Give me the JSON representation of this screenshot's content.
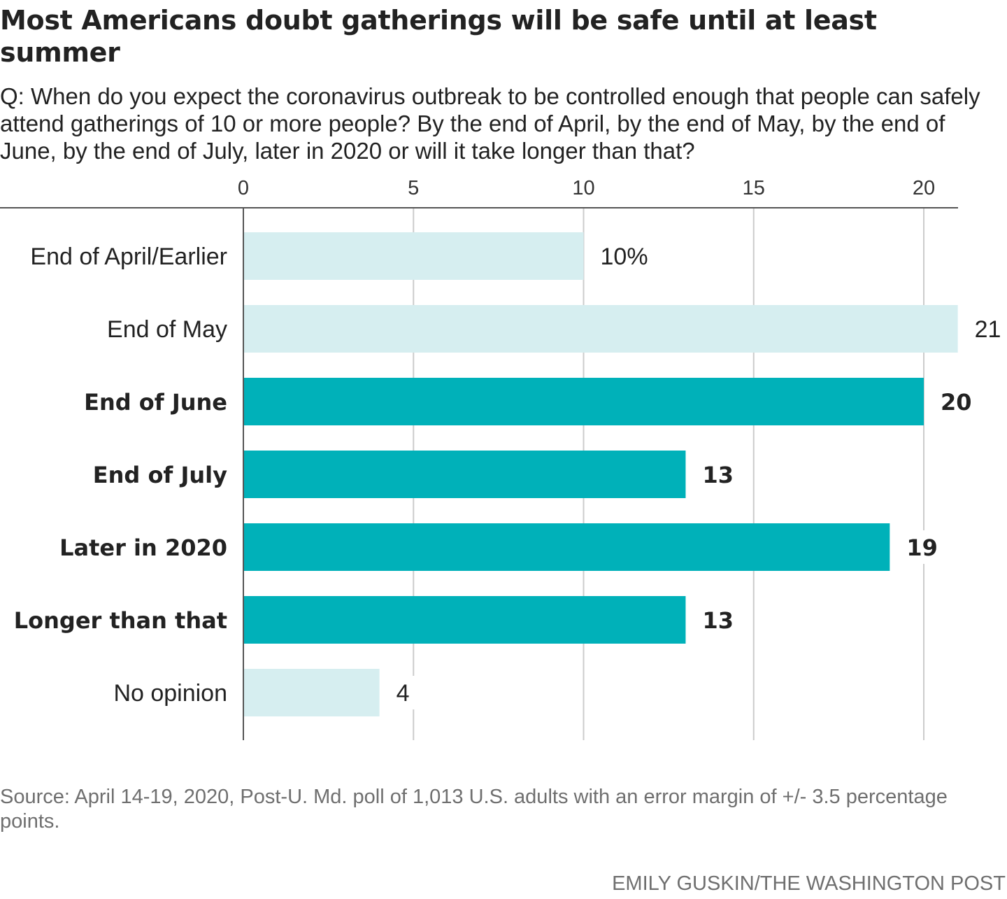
{
  "title": "Most Americans doubt gatherings will be safe until at least summer",
  "subtitle": "Q: When do you expect the coronavirus outbreak to be controlled enough that people can safely attend gatherings of 10 or more people? By the end of April, by the end of May, by the end of June, by the end of July, later in 2020 or will it take longer than that?",
  "source": "Source: April 14-19, 2020, Post-U. Md. poll of 1,013 U.S. adults with an error margin of +/- 3.5 percentage points.",
  "credit": "EMILY GUSKIN/THE WASHINGTON POST",
  "colors": {
    "highlight": "#00b1b9",
    "muted": "#d6eef0",
    "grid": "#cccccc",
    "axis": "#555555"
  },
  "chart_data": {
    "type": "bar",
    "orientation": "horizontal",
    "xlim": [
      0,
      21
    ],
    "xticks": [
      0,
      5,
      10,
      15,
      20
    ],
    "grid": true,
    "categories": [
      "End of April/Earlier",
      "End of May",
      "End of June",
      "End of July",
      "Later in 2020",
      "Longer than that",
      "No opinion"
    ],
    "values": [
      10,
      21,
      20,
      13,
      19,
      13,
      4
    ],
    "value_labels": [
      "10%",
      "21",
      "20",
      "13",
      "19",
      "13",
      "4"
    ],
    "highlighted": [
      false,
      false,
      true,
      true,
      true,
      true,
      false
    ]
  }
}
